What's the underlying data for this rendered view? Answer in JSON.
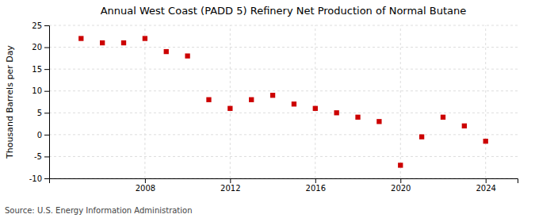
{
  "chart_data": {
    "type": "scatter",
    "title": "Annual West Coast (PADD 5) Refinery Net Production of Normal Butane",
    "ylabel": "Thousand Barrels per Day",
    "source": "Source: U.S. Energy Information Administration",
    "x": [
      2005,
      2006,
      2007,
      2008,
      2009,
      2010,
      2011,
      2012,
      2013,
      2014,
      2015,
      2016,
      2017,
      2018,
      2019,
      2020,
      2021,
      2022,
      2023,
      2024
    ],
    "values": [
      22,
      21,
      21,
      22,
      19,
      18,
      8,
      6,
      8,
      9,
      7,
      6,
      5,
      4,
      3,
      -7,
      -0.5,
      4,
      2,
      -1.5
    ],
    "color": "#cc0000",
    "marker": "square",
    "ylim": [
      -10,
      25
    ],
    "yticks": [
      -10,
      -5,
      0,
      5,
      10,
      15,
      20,
      25
    ],
    "xlim": [
      2003.5,
      2025.5
    ],
    "xticks": [
      2008,
      2012,
      2016,
      2020,
      2024
    ],
    "grid": true
  }
}
